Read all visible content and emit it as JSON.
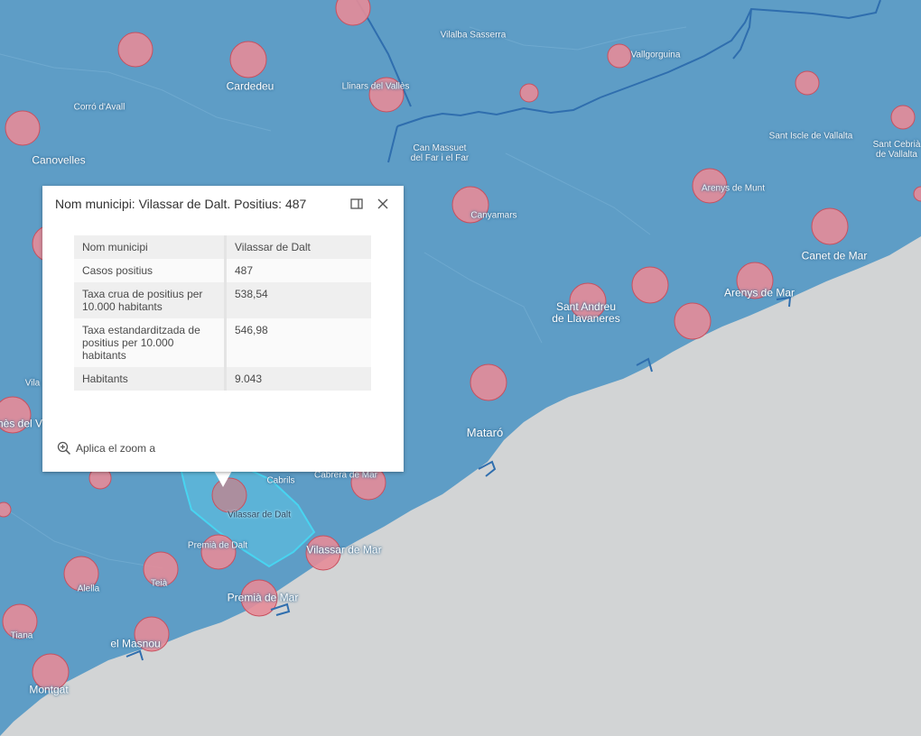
{
  "colors": {
    "land": "#5e9dc6",
    "sea": "#d2d4d5",
    "boundary": "#2f6eae",
    "circle_fill": "#e58c98",
    "circle_stroke": "#c8505f",
    "highlight": "#48d4f0"
  },
  "map": {
    "labels": [
      {
        "text": "Vilalba Sasserra",
        "size": "sm"
      },
      {
        "text": "Vallgorguina",
        "size": "sm"
      },
      {
        "text": "Cardedeu",
        "size": "md"
      },
      {
        "text": "Llinars del Vallès",
        "size": "sm"
      },
      {
        "text": "Corró d'Avall",
        "size": "sm"
      },
      {
        "text": "Canovelles",
        "size": "md"
      },
      {
        "text": "Can Massuet del Far i el Far",
        "size": "sm"
      },
      {
        "text": "Sant Iscle de Vallalta",
        "size": "sm"
      },
      {
        "text": "Sant Cebrià de Vallalta",
        "size": "sm"
      },
      {
        "text": "Arenys de Munt",
        "size": "sm"
      },
      {
        "text": "Canyamars",
        "size": "sm"
      },
      {
        "text": "Canet de Mar",
        "size": "md"
      },
      {
        "text": "Sant Andreu de Llavaneres",
        "size": "md"
      },
      {
        "text": "Arenys de Mar",
        "size": "md"
      },
      {
        "text": "Vila",
        "size": "sm"
      },
      {
        "text": "rnès del V",
        "size": "md"
      },
      {
        "text": "Mataró",
        "size": "lg"
      },
      {
        "text": "Cabrils",
        "size": "sm"
      },
      {
        "text": "Cabrera de Mar",
        "size": "sm"
      },
      {
        "text": "Vilassar de Dalt",
        "size": "sm"
      },
      {
        "text": "Premià de Dalt",
        "size": "sm"
      },
      {
        "text": "Vilassar de Mar",
        "size": "md"
      },
      {
        "text": "Alella",
        "size": "sm"
      },
      {
        "text": "Teià",
        "size": "sm"
      },
      {
        "text": "Premià de Mar",
        "size": "md"
      },
      {
        "text": "Tiana",
        "size": "sm"
      },
      {
        "text": "el Masnou",
        "size": "md"
      },
      {
        "text": "Montgat",
        "size": "md"
      }
    ]
  },
  "popup": {
    "title": "Nom municipi: Vilassar de Dalt. Positius: 487",
    "dock_icon": "dock-icon",
    "close_icon": "close-icon",
    "rows": [
      {
        "key": "Nom municipi",
        "value": "Vilassar de Dalt"
      },
      {
        "key": "Casos positius",
        "value": "487"
      },
      {
        "key": "Taxa crua de positius per 10.000 habitants",
        "value": "538,54"
      },
      {
        "key": "Taxa estandarditzada de positius per 10.000 habitants",
        "value": "546,98"
      },
      {
        "key": "Habitants",
        "value": "9.043"
      }
    ],
    "zoom_label": "Aplica el zoom a",
    "zoom_icon": "zoom-in-icon"
  }
}
